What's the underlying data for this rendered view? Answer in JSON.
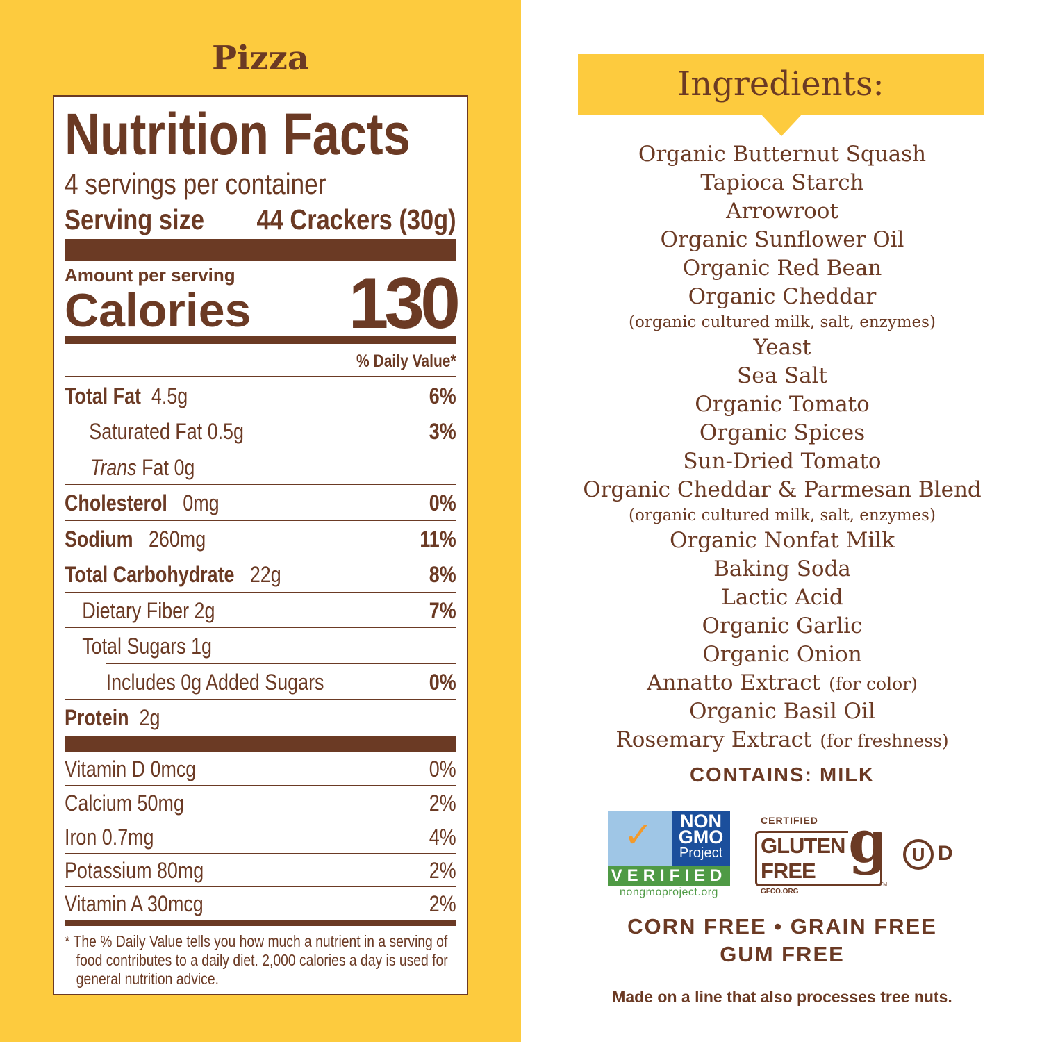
{
  "colors": {
    "background_left": "#fdcb3e",
    "brand_brown": "#6b3a24"
  },
  "flavor": "Pizza",
  "nutrition": {
    "title": "Nutrition Facts",
    "servings": "4 servings per container",
    "serving_size_label": "Serving size",
    "serving_size_value": "44 Crackers (30g)",
    "amount_per_serving": "Amount per serving",
    "calories_label": "Calories",
    "calories_value": "130",
    "dv_header": "% Daily Value*",
    "rows": [
      {
        "label": "Total Fat",
        "amount": "4.5g",
        "dv": "6%"
      },
      {
        "label": "Saturated Fat 0.5g",
        "amount": "",
        "dv": "3%"
      },
      {
        "label_italic": "Trans",
        "label": "Fat 0g",
        "amount": "",
        "dv": ""
      },
      {
        "label": "Cholesterol",
        "amount": "0mg",
        "dv": "0%"
      },
      {
        "label": "Sodium",
        "amount": "260mg",
        "dv": "11%"
      },
      {
        "label": "Total Carbohydrate",
        "amount": "22g",
        "dv": "8%"
      },
      {
        "label": "Dietary Fiber 2g",
        "amount": "",
        "dv": "7%"
      },
      {
        "label": "Total Sugars 1g",
        "amount": "",
        "dv": ""
      },
      {
        "label": "Includes 0g Added Sugars",
        "amount": "",
        "dv": "0%"
      },
      {
        "label": "Protein",
        "amount": "2g",
        "dv": ""
      }
    ],
    "vitamins": [
      {
        "label": "Vitamin D 0mcg",
        "dv": "0%"
      },
      {
        "label": "Calcium 50mg",
        "dv": "2%"
      },
      {
        "label": "Iron 0.7mg",
        "dv": "4%"
      },
      {
        "label": "Potassium 80mg",
        "dv": "2%"
      },
      {
        "label": "Vitamin A 30mcg",
        "dv": "2%"
      }
    ],
    "footnote_lines": [
      "* The % Daily Value tells you how much a nutrient in a serving of",
      "food contributes to a daily diet. 2,000 calories a day is used for",
      "general nutrition advice."
    ]
  },
  "ingredients": {
    "title": "Ingredients:",
    "items": [
      {
        "t": "Organic Butternut Squash"
      },
      {
        "t": "Tapioca Starch"
      },
      {
        "t": "Arrowroot"
      },
      {
        "t": "Organic Sunflower Oil"
      },
      {
        "t": "Organic Red Bean"
      },
      {
        "t": "Organic Cheddar"
      },
      {
        "sub": "(organic cultured milk, salt, enzymes)"
      },
      {
        "t": "Yeast"
      },
      {
        "t": "Sea Salt"
      },
      {
        "t": "Organic Tomato"
      },
      {
        "t": "Organic Spices"
      },
      {
        "t": "Sun-Dried Tomato"
      },
      {
        "t": "Organic Cheddar & Parmesan Blend"
      },
      {
        "sub": "(organic cultured milk, salt, enzymes)"
      },
      {
        "t": "Organic Nonfat Milk"
      },
      {
        "t": "Baking Soda"
      },
      {
        "t": "Lactic Acid"
      },
      {
        "t": "Organic Garlic"
      },
      {
        "t": "Organic Onion"
      },
      {
        "t": "Annatto Extract",
        "note": "(for color)"
      },
      {
        "t": "Organic Basil Oil"
      },
      {
        "t": "Rosemary Extract",
        "note": "(for freshness)"
      }
    ],
    "contains": "CONTAINS: MILK"
  },
  "logos": {
    "nongmo": {
      "line1": "NON",
      "line2": "GMO",
      "line3": "Project",
      "verified": "VERIFIED",
      "url": "nongmoproject.org"
    },
    "gluten": {
      "certified": "CERTIFIED",
      "line1": "GLUTEN",
      "line2": "FREE",
      "url": "GFCO.ORG",
      "tm": "TM"
    },
    "kosher": {
      "symbol": "U",
      "suffix": "D"
    }
  },
  "claims": {
    "line1": "CORN FREE • GRAIN FREE",
    "line2": "GUM FREE",
    "disclaimer": "Made on a line that also processes tree nuts."
  }
}
